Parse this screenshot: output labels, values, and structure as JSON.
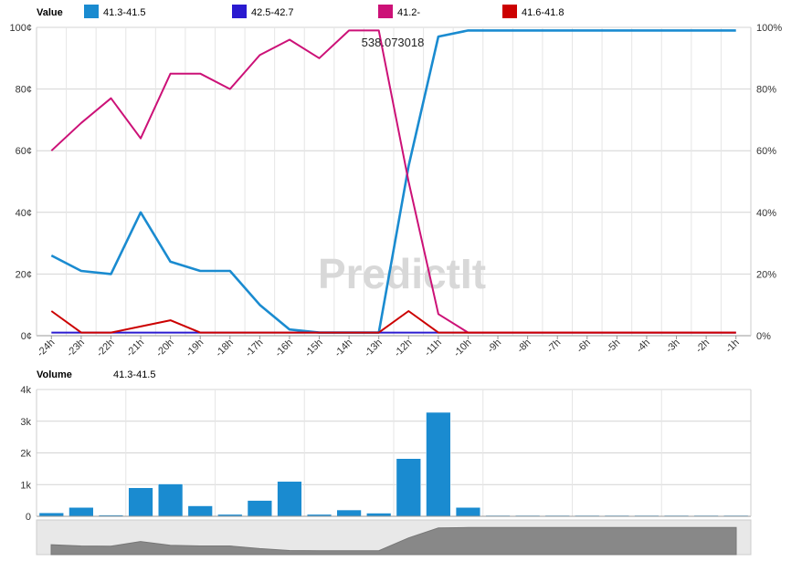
{
  "watermark": "PredictIt",
  "chart_data": [
    {
      "type": "line",
      "title": "Value",
      "categories": [
        "-24h",
        "-23h",
        "-22h",
        "-21h",
        "-20h",
        "-19h",
        "-18h",
        "-17h",
        "-16h",
        "-15h",
        "-14h",
        "-13h",
        "-12h",
        "-11h",
        "-10h",
        "-9h",
        "-8h",
        "-7h",
        "-6h",
        "-5h",
        "-4h",
        "-3h",
        "-2h",
        "-1h"
      ],
      "ylim": [
        0,
        100
      ],
      "y_ticks": [
        "0¢",
        "20¢",
        "40¢",
        "60¢",
        "80¢",
        "100¢"
      ],
      "y2_ticks": [
        "0%",
        "20%",
        "40%",
        "60%",
        "80%",
        "100%"
      ],
      "grid": true,
      "legend_placement": "top",
      "annotation": "538.073018",
      "series": [
        {
          "name": "41.3-41.5",
          "color": "#1a8bd0",
          "values": [
            26,
            21,
            20,
            40,
            24,
            21,
            21,
            10,
            2,
            1,
            1,
            1,
            55,
            97,
            99,
            99,
            99,
            99,
            99,
            99,
            99,
            99,
            99,
            99
          ]
        },
        {
          "name": "42.5-42.7",
          "color": "#2a1ad0",
          "values": [
            1,
            1,
            1,
            1,
            1,
            1,
            1,
            1,
            1,
            1,
            1,
            1,
            1,
            1,
            1,
            1,
            1,
            1,
            1,
            1,
            1,
            1,
            1,
            1
          ]
        },
        {
          "name": "41.2-",
          "color": "#cc1177",
          "values": [
            60,
            69,
            77,
            64,
            85,
            85,
            80,
            91,
            96,
            90,
            99,
            99,
            50,
            7,
            1,
            1,
            1,
            1,
            1,
            1,
            1,
            1,
            1,
            1
          ]
        },
        {
          "name": "41.6-41.8",
          "color": "#cc0000",
          "values": [
            8,
            1,
            1,
            3,
            5,
            1,
            1,
            1,
            1,
            1,
            1,
            1,
            8,
            1,
            1,
            1,
            1,
            1,
            1,
            1,
            1,
            1,
            1,
            1
          ]
        }
      ]
    },
    {
      "type": "bar",
      "title": "Volume",
      "series_label": "41.3-41.5",
      "color": "#1a8bd0",
      "categories": [
        "-24h",
        "-23h",
        "-22h",
        "-21h",
        "-20h",
        "-19h",
        "-18h",
        "-17h",
        "-16h",
        "-15h",
        "-14h",
        "-13h",
        "-12h",
        "-11h",
        "-10h",
        "-9h",
        "-8h",
        "-7h",
        "-6h",
        "-5h",
        "-4h",
        "-3h",
        "-2h",
        "-1h"
      ],
      "values": [
        110,
        280,
        40,
        900,
        1020,
        330,
        60,
        500,
        1100,
        60,
        200,
        100,
        1820,
        3280,
        280,
        0,
        0,
        0,
        0,
        0,
        0,
        0,
        0,
        0
      ],
      "ylim": [
        0,
        4000
      ],
      "y_ticks": [
        "0",
        "1k",
        "2k",
        "3k",
        "4k"
      ]
    }
  ]
}
